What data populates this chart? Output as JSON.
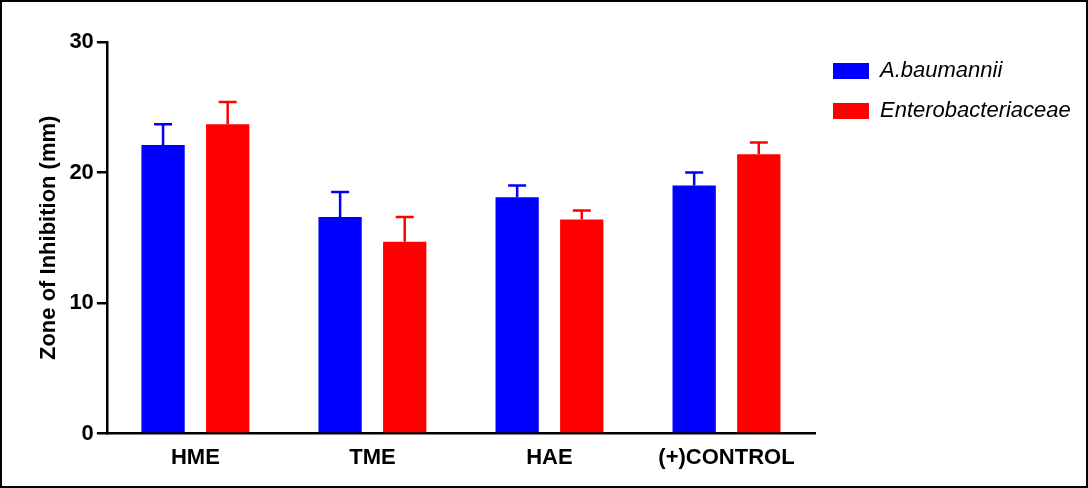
{
  "chart_data": {
    "type": "bar",
    "ylabel": "Zone of Inhibition (mm)",
    "categories": [
      "HME",
      "TME",
      "HAE",
      "(+)CONTROL"
    ],
    "series": [
      {
        "name": "A.baumannii",
        "color": "#0000ff",
        "values": [
          22.1,
          16.6,
          18.1,
          19.0
        ],
        "errors": [
          [
            22.1,
            23.7
          ],
          [
            16.6,
            18.5
          ],
          [
            18.1,
            19.0
          ],
          [
            19.0,
            20.0
          ]
        ]
      },
      {
        "name": "Enterobacteriaceae",
        "color": "#ff0000",
        "values": [
          23.7,
          14.7,
          16.4,
          21.4
        ],
        "errors": [
          [
            23.7,
            25.4
          ],
          [
            14.7,
            16.6
          ],
          [
            16.4,
            17.1
          ],
          [
            21.4,
            22.3
          ]
        ]
      }
    ],
    "ylim": [
      0,
      30
    ],
    "yticks": [
      0,
      10,
      20,
      30
    ],
    "legend": "top right"
  }
}
